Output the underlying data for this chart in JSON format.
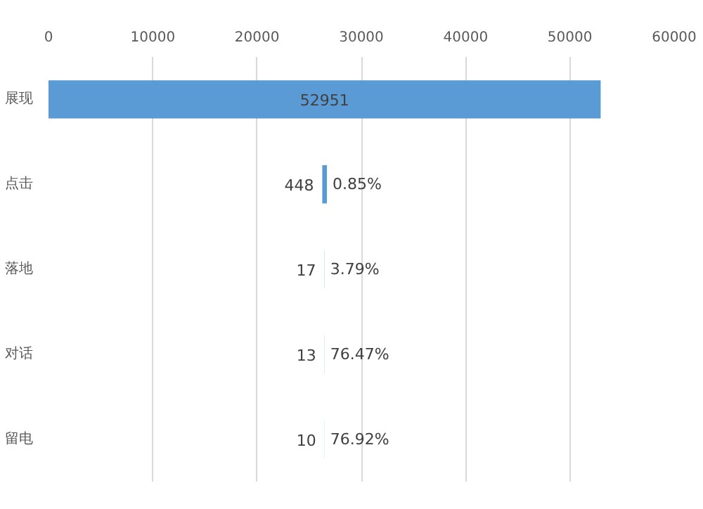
{
  "chart_data": {
    "type": "bar",
    "orientation": "horizontal",
    "categories": [
      "展现",
      "点击",
      "落地",
      "对话",
      "留电"
    ],
    "values": [
      52951,
      448,
      17,
      13,
      10
    ],
    "base": [
      0,
      26252,
      26467,
      26469,
      26471
    ],
    "color": "#5b9bd5",
    "data_labels": true,
    "xlim": [
      0,
      60000
    ],
    "xticks": [
      0,
      10000,
      20000,
      30000,
      40000,
      50000,
      60000
    ],
    "grid": "x",
    "annotations": [
      "0.85%",
      "3.79%",
      "76.47%",
      "76.92%"
    ]
  }
}
